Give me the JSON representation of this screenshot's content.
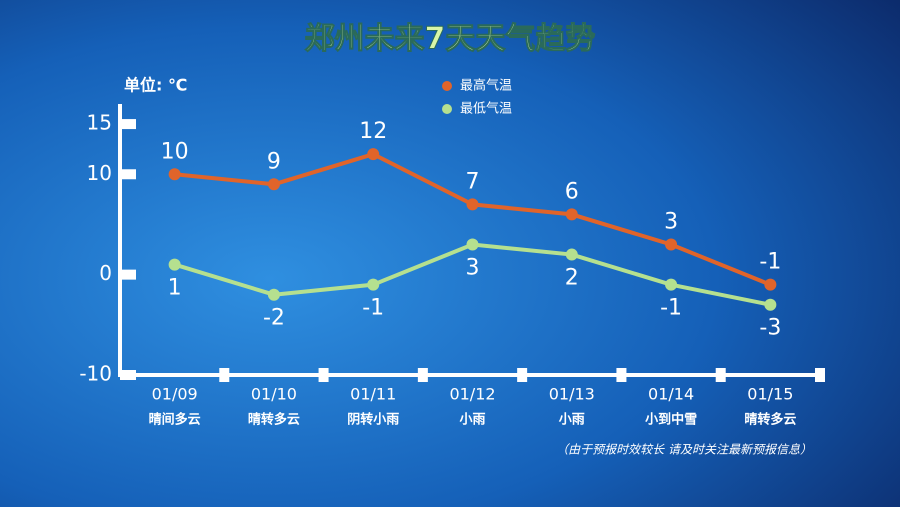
{
  "chart_data": {
    "type": "line",
    "title": "郑州未来7天天气趋势",
    "y_label": "单位: ℃",
    "categories": [
      "01/09",
      "01/10",
      "01/11",
      "01/12",
      "01/13",
      "01/14",
      "01/15"
    ],
    "weather": [
      "晴间多云",
      "晴转多云",
      "阴转小雨",
      "小雨",
      "小雨",
      "小到中雪",
      "晴转多云"
    ],
    "series": [
      {
        "name": "最高气温",
        "color": "#e0642a",
        "values": [
          10,
          9,
          12,
          7,
          6,
          3,
          -1
        ]
      },
      {
        "name": "最低气温",
        "color": "#b5e08f",
        "values": [
          1,
          -2,
          -1,
          3,
          2,
          -1,
          -3
        ]
      }
    ],
    "ylim": [
      -10,
      17
    ],
    "yticks": [
      -10,
      0,
      10,
      15
    ],
    "legend": "top",
    "note": "（由于预报时效较长 请及时关注最新预报信息）"
  }
}
